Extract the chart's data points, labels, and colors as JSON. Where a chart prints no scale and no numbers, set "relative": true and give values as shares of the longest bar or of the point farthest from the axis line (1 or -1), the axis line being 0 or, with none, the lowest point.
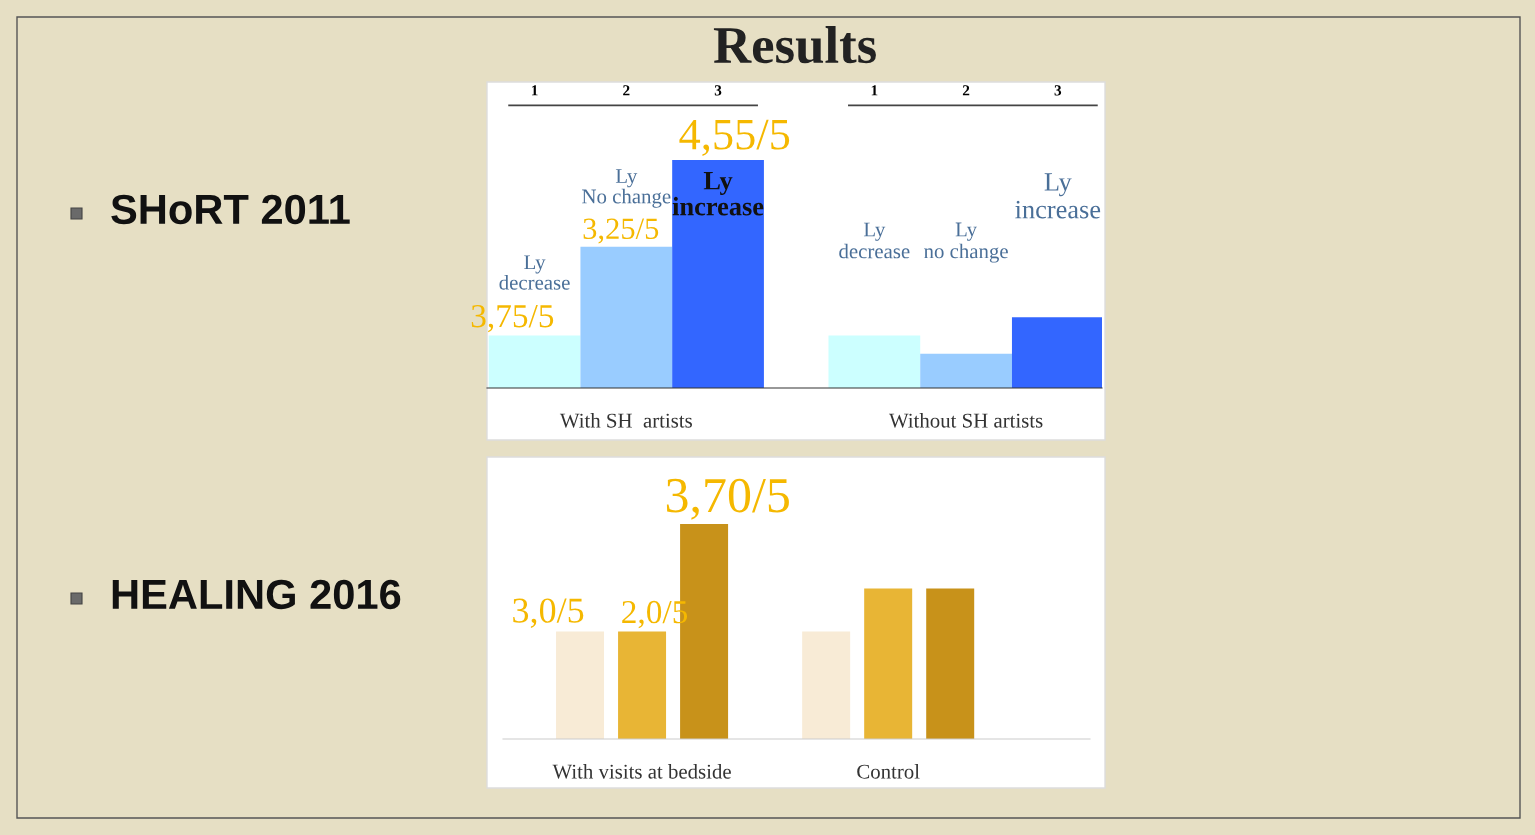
{
  "chart_data": [
    {
      "type": "bar",
      "title": "Results",
      "relative": true,
      "categories": [
        "With SH  artists",
        "Without SH artists"
      ],
      "series": [
        {
          "color": "#ccffff",
          "values": [
            0.23,
            0.23
          ]
        },
        {
          "color": "#99ccff",
          "values": [
            0.62,
            0.15
          ]
        },
        {
          "color": "#3366ff",
          "values": [
            1,
            0.31
          ]
        }
      ],
      "annotations": [
        "SHoRT 2011",
        "1",
        "2",
        "3",
        "1",
        "2",
        "3",
        "Ly decrease",
        "Ly No change",
        "Ly increase",
        "Ly decrease",
        "Ly no change",
        "Ly increase",
        "3,75/5",
        "3,25/5",
        "4,55/5"
      ]
    },
    {
      "type": "bar",
      "relative": true,
      "categories": [
        "With visits at bedside",
        "Control"
      ],
      "series": [
        {
          "color": "#f8ebd6",
          "values": [
            0.5,
            0.5
          ]
        },
        {
          "color": "#e8b535",
          "values": [
            0.5,
            0.7
          ]
        },
        {
          "color": "#c8921a",
          "values": [
            1,
            0.7
          ]
        }
      ],
      "annotations": [
        "HEALING 2016",
        "3,0/5",
        "2,0/5",
        "3,70/5"
      ]
    }
  ]
}
